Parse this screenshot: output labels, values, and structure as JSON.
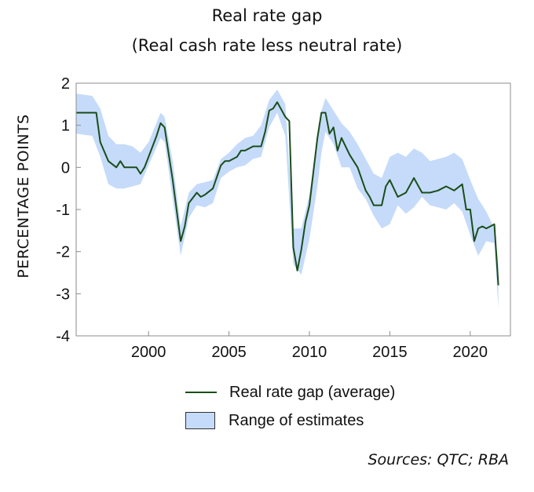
{
  "chart_data": {
    "type": "line",
    "title": "Real rate gap",
    "subtitle": "(Real cash rate less neutral rate)",
    "ylabel": "PERCENTAGE POINTS",
    "xlabel": "",
    "xlim": [
      1995.5,
      2022.5
    ],
    "ylim": [
      -4,
      2
    ],
    "x_ticks": [
      2000,
      2005,
      2010,
      2015,
      2020
    ],
    "y_ticks": [
      -4,
      -3,
      -2,
      -1,
      0,
      1,
      2
    ],
    "grid": false,
    "legend_position": "bottom",
    "sources": "Sources: QTC; RBA",
    "series": [
      {
        "name": "Real rate gap (average)",
        "kind": "line",
        "color": "#1a4d1a",
        "x": [
          1995.5,
          1996.25,
          1996.5,
          1996.75,
          1997,
          1997.5,
          1998,
          1998.25,
          1998.5,
          1999,
          1999.25,
          1999.5,
          1999.75,
          2000,
          2000.5,
          2000.75,
          2001,
          2001.5,
          2002,
          2002.25,
          2002.5,
          2003,
          2003.25,
          2003.5,
          2004,
          2004.5,
          2004.75,
          2005,
          2005.5,
          2005.75,
          2006,
          2006.5,
          2007,
          2007.25,
          2007.5,
          2007.75,
          2008,
          2008.5,
          2008.75,
          2009,
          2009.25,
          2009.5,
          2009.75,
          2010,
          2010.25,
          2010.5,
          2010.75,
          2011,
          2011.25,
          2011.5,
          2011.75,
          2012,
          2012.5,
          2013,
          2013.5,
          2013.75,
          2014,
          2014.5,
          2014.75,
          2015,
          2015.5,
          2016,
          2016.5,
          2017,
          2017.5,
          2018,
          2018.5,
          2019,
          2019.5,
          2019.75,
          2020,
          2020.25,
          2020.5,
          2020.75,
          2021,
          2021.5,
          2021.75
        ],
        "y": [
          1.3,
          1.3,
          1.3,
          1.3,
          0.6,
          0.15,
          0.0,
          0.15,
          0.0,
          0.0,
          0.0,
          -0.15,
          0.0,
          0.25,
          0.75,
          1.05,
          0.95,
          -0.3,
          -1.75,
          -1.4,
          -0.85,
          -0.6,
          -0.7,
          -0.65,
          -0.5,
          0.05,
          0.15,
          0.15,
          0.25,
          0.4,
          0.4,
          0.5,
          0.5,
          0.85,
          1.35,
          1.4,
          1.55,
          1.2,
          1.1,
          -1.9,
          -2.45,
          -1.95,
          -1.3,
          -0.9,
          -0.1,
          0.7,
          1.3,
          1.3,
          0.8,
          0.95,
          0.4,
          0.7,
          0.3,
          0.0,
          -0.55,
          -0.7,
          -0.9,
          -0.9,
          -0.45,
          -0.3,
          -0.7,
          -0.6,
          -0.25,
          -0.6,
          -0.6,
          -0.55,
          -0.45,
          -0.55,
          -0.4,
          -1.0,
          -1.0,
          -1.75,
          -1.45,
          -1.4,
          -1.45,
          -1.35,
          -2.8
        ]
      },
      {
        "name": "Range of estimates",
        "kind": "band",
        "color": "#c5dbf9",
        "x": [
          1995.5,
          1996.5,
          1997,
          1997.5,
          1998,
          1998.5,
          1999,
          1999.5,
          2000,
          2000.75,
          2001,
          2001.5,
          2002,
          2002.5,
          2003,
          2003.5,
          2004,
          2004.5,
          2005,
          2005.5,
          2006,
          2006.5,
          2007,
          2007.5,
          2008,
          2008.5,
          2009,
          2009.5,
          2010,
          2010.5,
          2010.75,
          2011,
          2011.5,
          2012,
          2012.5,
          2013,
          2013.5,
          2014,
          2014.5,
          2015,
          2015.5,
          2016,
          2016.5,
          2017,
          2017.5,
          2018,
          2018.5,
          2019,
          2019.5,
          2020,
          2020.5,
          2021,
          2021.5,
          2021.75
        ],
        "low": [
          0.8,
          0.75,
          0.25,
          -0.4,
          -0.5,
          -0.5,
          -0.45,
          -0.4,
          0.05,
          0.7,
          0.6,
          -0.75,
          -2.1,
          -1.2,
          -0.9,
          -0.95,
          -0.85,
          -0.25,
          -0.1,
          0.0,
          0.05,
          0.2,
          0.25,
          0.95,
          1.3,
          0.75,
          -2.3,
          -2.55,
          -1.7,
          -0.45,
          0.35,
          0.85,
          0.55,
          0.0,
          0.0,
          -0.5,
          -0.75,
          -1.15,
          -1.45,
          -1.35,
          -0.9,
          -1.1,
          -0.95,
          -0.7,
          -0.9,
          -0.95,
          -1.0,
          -0.85,
          -1.05,
          -1.6,
          -2.1,
          -1.75,
          -1.8,
          -3.35
        ],
        "high": [
          1.75,
          1.7,
          1.4,
          0.75,
          0.55,
          0.55,
          0.5,
          0.35,
          0.6,
          1.3,
          1.2,
          0.15,
          -1.4,
          -0.6,
          -0.4,
          -0.35,
          -0.3,
          0.2,
          0.35,
          0.55,
          0.7,
          0.75,
          1.0,
          1.6,
          1.85,
          1.5,
          -1.45,
          -1.45,
          -0.65,
          0.75,
          1.35,
          1.65,
          1.35,
          1.05,
          0.85,
          0.55,
          0.2,
          -0.15,
          -0.25,
          0.25,
          0.35,
          0.25,
          0.45,
          0.35,
          0.15,
          0.2,
          0.25,
          0.35,
          0.2,
          -0.3,
          -0.75,
          -1.05,
          -1.45,
          -2.3
        ]
      }
    ]
  }
}
